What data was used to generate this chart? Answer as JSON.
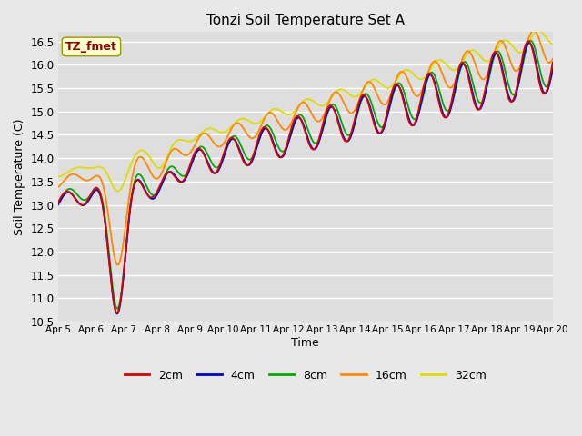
{
  "title": "Tonzi Soil Temperature Set A",
  "xlabel": "Time",
  "ylabel": "Soil Temperature (C)",
  "ylim": [
    10.5,
    16.7
  ],
  "background_color": "#e8e8e8",
  "plot_bg_color": "#dedede",
  "annotation_text": "TZ_fmet",
  "annotation_bg": "#ffffcc",
  "annotation_border": "#999900",
  "annotation_color": "#880000",
  "series_colors": {
    "2cm": "#dd0000",
    "4cm": "#0000cc",
    "8cm": "#00aa00",
    "16cm": "#ff8800",
    "32cm": "#dddd00"
  },
  "series_order": [
    "32cm",
    "16cm",
    "8cm",
    "4cm",
    "2cm"
  ],
  "legend_order": [
    "2cm",
    "4cm",
    "8cm",
    "16cm",
    "32cm"
  ],
  "xtick_labels": [
    "Apr 5",
    "Apr 6",
    "Apr 7",
    "Apr 8",
    "Apr 9",
    "Apr 10",
    "Apr 11",
    "Apr 12",
    "Apr 13",
    "Apr 14",
    "Apr 15",
    "Apr 16",
    "Apr 17",
    "Apr 18",
    "Apr 19",
    "Apr 20"
  ],
  "ytick_values": [
    10.5,
    11.0,
    11.5,
    12.0,
    12.5,
    13.0,
    13.5,
    14.0,
    14.5,
    15.0,
    15.5,
    16.0,
    16.5
  ],
  "figsize": [
    6.4,
    4.8
  ],
  "dpi": 100
}
